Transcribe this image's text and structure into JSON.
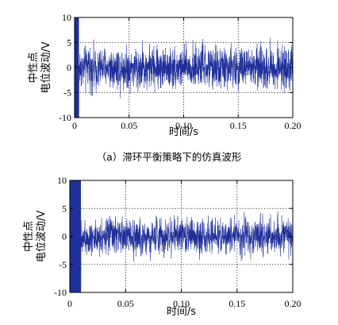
{
  "chart_data": [
    {
      "type": "line",
      "caption": "（a）滞环平衡策略下的仿真波形",
      "xlabel": "时间/s",
      "ylabel_line1": "中性点",
      "ylabel_line2": "电位波动/V",
      "xlim": [
        0,
        0.2
      ],
      "ylim": [
        -10,
        10
      ],
      "xticks": [
        "0",
        "0.05",
        "0.10",
        "0.15",
        "0.20"
      ],
      "yticks": [
        "10",
        "5",
        "0",
        "-5",
        "-10"
      ],
      "grid": "dotted",
      "series_color": "#1f2f9a",
      "series": [
        {
          "description": "noisy voltage ripple",
          "startup_transient_end": 0.004,
          "startup_amplitude": 10,
          "steady_amplitude": 6.5,
          "steady_mean": 0
        }
      ]
    },
    {
      "type": "line",
      "caption": "",
      "xlabel": "时间/s",
      "ylabel_line1": "中性点",
      "ylabel_line2": "电位波动/V",
      "xlim": [
        0,
        0.2
      ],
      "ylim": [
        -10,
        10
      ],
      "xticks": [
        "0",
        "0.05",
        "0.10",
        "0.15",
        "0.20"
      ],
      "yticks": [
        "10",
        "5",
        "0",
        "-5",
        "-10"
      ],
      "grid": "dotted",
      "series_color": "#1f2f9a",
      "series": [
        {
          "description": "noisy voltage ripple",
          "startup_transient_end": 0.01,
          "startup_amplitude": 10,
          "steady_amplitude": 5.0,
          "steady_mean": 0
        }
      ]
    }
  ]
}
